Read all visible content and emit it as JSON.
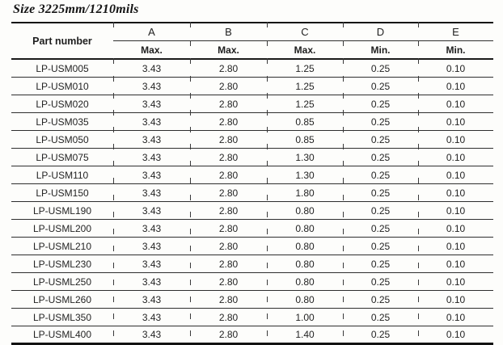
{
  "title": "Size 3225mm/1210mils",
  "table": {
    "part_number_header": "Part number",
    "columns": [
      {
        "letter": "A",
        "limit": "Max."
      },
      {
        "letter": "B",
        "limit": "Max."
      },
      {
        "letter": "C",
        "limit": "Max."
      },
      {
        "letter": "D",
        "limit": "Min."
      },
      {
        "letter": "E",
        "limit": "Min."
      }
    ],
    "rows": [
      {
        "part": "LP-USM005",
        "values": [
          "3.43",
          "2.80",
          "1.25",
          "0.25",
          "0.10"
        ]
      },
      {
        "part": "LP-USM010",
        "values": [
          "3.43",
          "2.80",
          "1.25",
          "0.25",
          "0.10"
        ]
      },
      {
        "part": "LP-USM020",
        "values": [
          "3.43",
          "2.80",
          "1.25",
          "0.25",
          "0.10"
        ]
      },
      {
        "part": "LP-USM035",
        "values": [
          "3.43",
          "2.80",
          "0.85",
          "0.25",
          "0.10"
        ]
      },
      {
        "part": "LP-USM050",
        "values": [
          "3.43",
          "2.80",
          "0.85",
          "0.25",
          "0.10"
        ]
      },
      {
        "part": "LP-USM075",
        "values": [
          "3.43",
          "2.80",
          "1.30",
          "0.25",
          "0.10"
        ]
      },
      {
        "part": "LP-USM110",
        "values": [
          "3.43",
          "2.80",
          "1.30",
          "0.25",
          "0.10"
        ]
      },
      {
        "part": "LP-USM150",
        "values": [
          "3.43",
          "2.80",
          "1.80",
          "0.25",
          "0.10"
        ]
      },
      {
        "part": "LP-USML190",
        "values": [
          "3.43",
          "2.80",
          "0.80",
          "0.25",
          "0.10"
        ]
      },
      {
        "part": "LP-USML200",
        "values": [
          "3.43",
          "2.80",
          "0.80",
          "0.25",
          "0.10"
        ]
      },
      {
        "part": "LP-USML210",
        "values": [
          "3.43",
          "2.80",
          "0.80",
          "0.25",
          "0.10"
        ]
      },
      {
        "part": "LP-USML230",
        "values": [
          "3.43",
          "2.80",
          "0.80",
          "0.25",
          "0.10"
        ]
      },
      {
        "part": "LP-USML250",
        "values": [
          "3.43",
          "2.80",
          "0.80",
          "0.25",
          "0.10"
        ]
      },
      {
        "part": "LP-USML260",
        "values": [
          "3.43",
          "2.80",
          "0.80",
          "0.25",
          "0.10"
        ]
      },
      {
        "part": "LP-USML350",
        "values": [
          "3.43",
          "2.80",
          "1.00",
          "0.25",
          "0.10"
        ]
      },
      {
        "part": "LP-USML400",
        "values": [
          "3.43",
          "2.80",
          "1.40",
          "0.25",
          "0.10"
        ]
      }
    ]
  },
  "line_colors": {
    "thick_rule": "#121212",
    "thin_rule": "#2e2e2e"
  }
}
